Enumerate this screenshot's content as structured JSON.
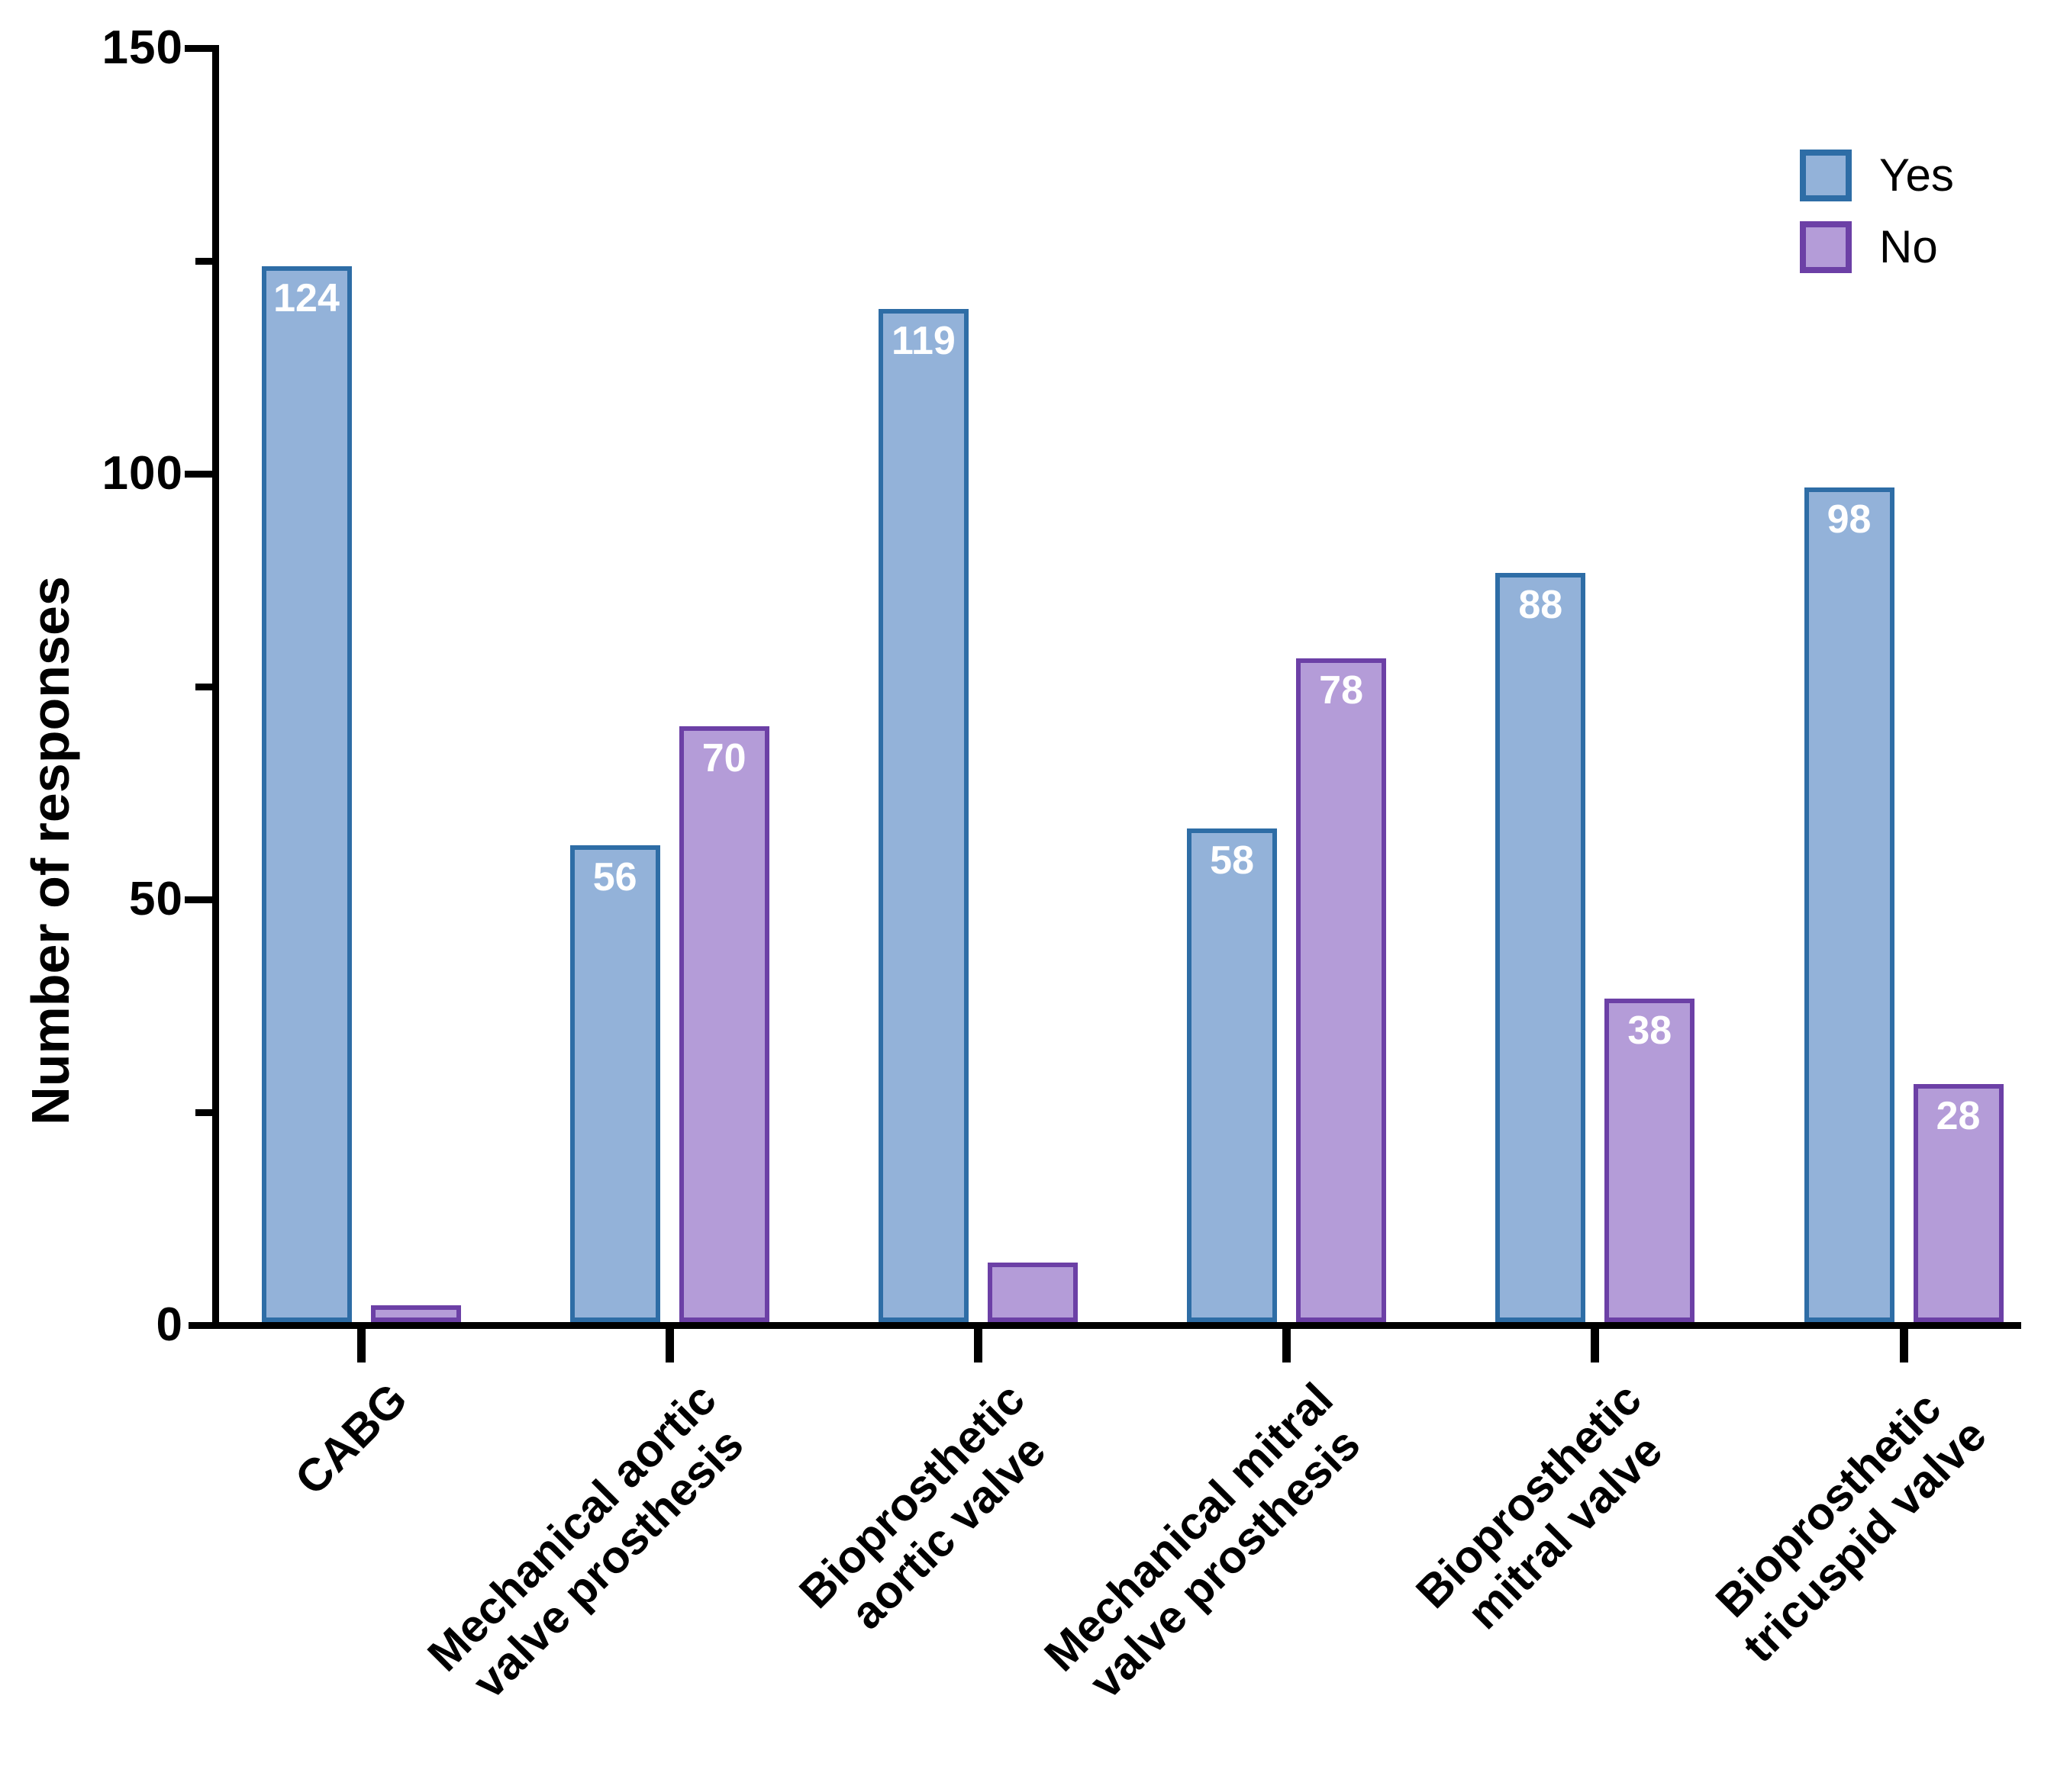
{
  "figure": {
    "background": "#ffffff",
    "axis_color": "#000000"
  },
  "chart_data": {
    "type": "bar",
    "title": "",
    "xlabel": "",
    "ylabel": "Number of responses",
    "ylim": [
      0,
      150
    ],
    "yticks_major": [
      0,
      50,
      100,
      150
    ],
    "yticks_minor": [
      25,
      75,
      125
    ],
    "grid": "off",
    "categories": [
      "CABG",
      "Mechanical aortic\nvalve prosthesis",
      "Bioprosthetic\naortic valve",
      "Mechanical mitral\nvalve prosthesis",
      "Bioprosthetic\nmitral valve",
      "Bioprosthetic\ntricuspid valve"
    ],
    "series": [
      {
        "name": "Yes",
        "values": [
          124,
          56,
          119,
          58,
          88,
          98
        ],
        "bar_labels": [
          "124",
          "56",
          "119",
          "58",
          "88",
          "98"
        ],
        "fill": "#93B2D9",
        "border": "#2E6DA6"
      },
      {
        "name": "No",
        "values": [
          2,
          70,
          7,
          78,
          38,
          28
        ],
        "bar_labels": [
          "",
          "70",
          "",
          "78",
          "38",
          "28"
        ],
        "fill": "#B49CD8",
        "border": "#6C40A6"
      }
    ],
    "legend": {
      "position": "top-right"
    },
    "value_label_color": "#FFFFFF",
    "tick_label_color": "#000000"
  }
}
